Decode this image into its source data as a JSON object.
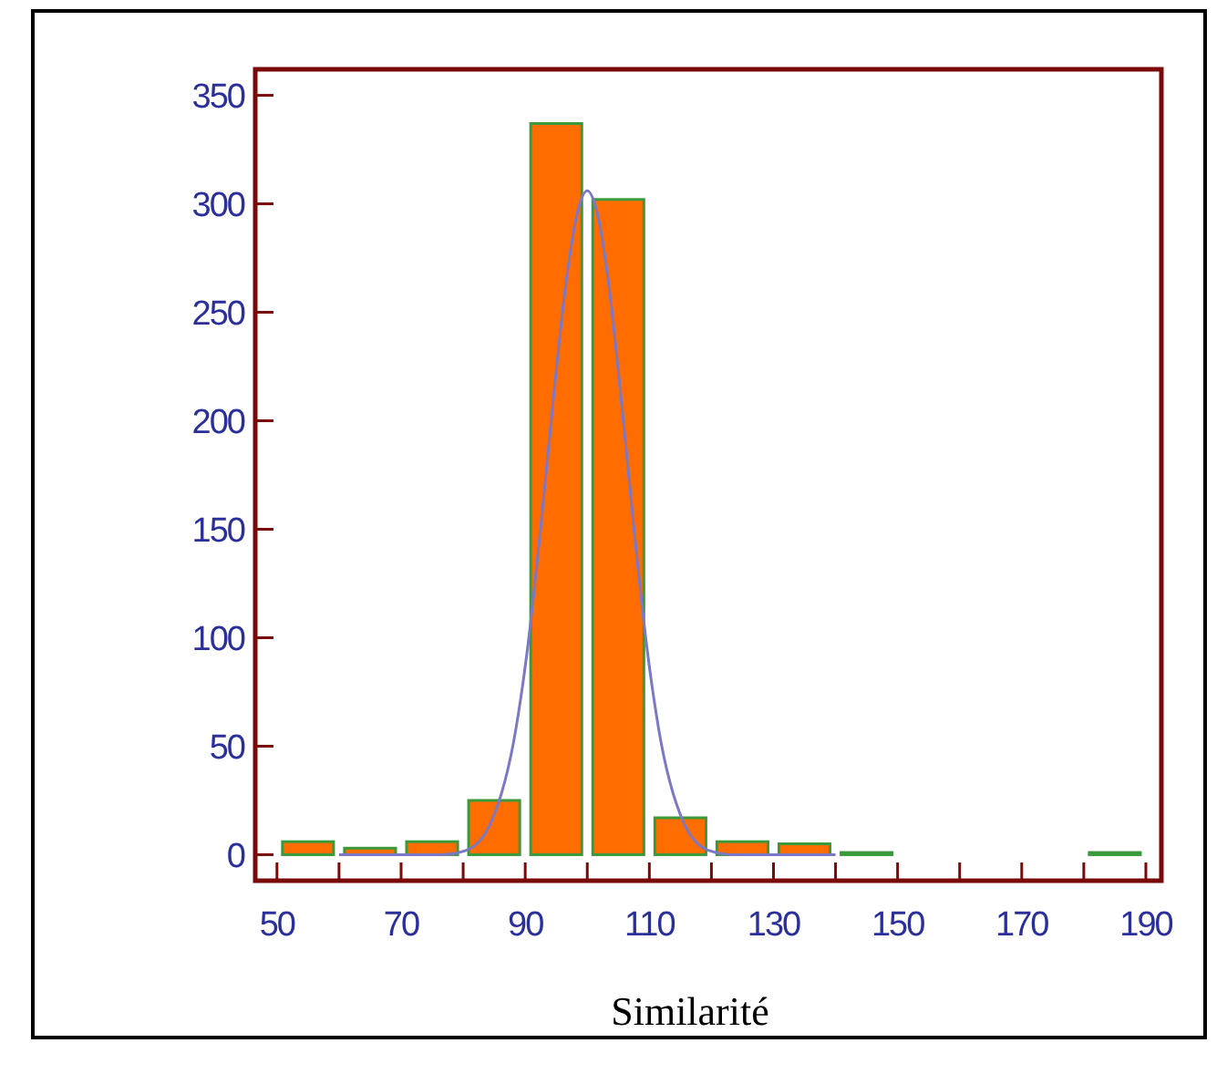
{
  "chart_data": {
    "type": "histogram",
    "xlabel": "Similarité",
    "bins": [
      50,
      60,
      70,
      80,
      90,
      100,
      110,
      120,
      130,
      140,
      150,
      160,
      170,
      180,
      190
    ],
    "values": [
      6,
      3,
      6,
      25,
      337,
      302,
      17,
      6,
      5,
      1,
      0,
      0,
      0,
      1
    ],
    "color": "#ff6d00",
    "series": [
      {
        "type": "line",
        "color": "#7b78c8",
        "x": [
          60,
          70,
          76.5,
          80.5,
          84.5,
          88.5,
          90.5,
          92.5,
          94.5,
          96.5,
          98.5,
          100,
          101.5,
          103.5,
          105.5,
          107.5,
          109.5,
          111.5,
          115.5,
          119.5,
          123.5,
          130,
          140
        ],
        "values": [
          0,
          0,
          0,
          2,
          15,
          58,
          98,
          151,
          209,
          262,
          297,
          306,
          297,
          262,
          209,
          151,
          98,
          58,
          15,
          2,
          0,
          0,
          0
        ]
      }
    ],
    "xlim": [
      46.5,
      192.5
    ],
    "xticks": [
      50,
      {
        "value": 60,
        "label": null
      },
      70,
      {
        "value": 80,
        "label": null
      },
      90,
      {
        "value": 100,
        "label": null
      },
      110,
      {
        "value": 120,
        "label": null
      },
      130,
      {
        "value": 140,
        "label": null
      },
      150,
      {
        "value": 160,
        "label": null
      },
      170,
      {
        "value": 180,
        "label": null
      },
      190
    ],
    "ylim": [
      -12,
      362
    ],
    "yticks": [
      0,
      50,
      100,
      150,
      200,
      250,
      300,
      350
    ],
    "grid": false
  }
}
